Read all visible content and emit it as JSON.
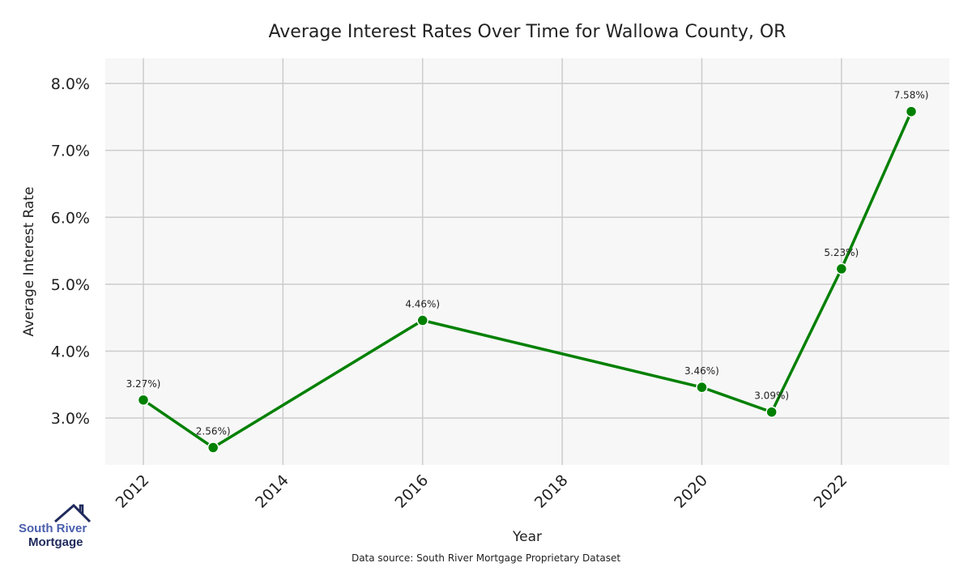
{
  "chart_data": {
    "type": "line",
    "title": "Average Interest Rates Over Time for Wallowa County, OR",
    "xlabel": "Year",
    "ylabel": "Average Interest Rate",
    "x": [
      2012,
      2013,
      2016,
      2020,
      2021,
      2022,
      2023
    ],
    "values": [
      3.27,
      2.56,
      4.46,
      3.46,
      3.09,
      5.23,
      7.58
    ],
    "data_labels": [
      "3.27%)",
      "2.56%)",
      "4.46%)",
      "3.46%)",
      "3.09%)",
      "5.23%)",
      "7.58%)"
    ],
    "xticks": [
      "2012",
      "2014",
      "2016",
      "2018",
      "2020",
      "2022"
    ],
    "xtick_values": [
      2012,
      2014,
      2016,
      2018,
      2020,
      2022
    ],
    "yticks": [
      "3.0%",
      "4.0%",
      "5.0%",
      "6.0%",
      "7.0%",
      "8.0%"
    ],
    "ytick_values": [
      3,
      4,
      5,
      6,
      7,
      8
    ],
    "xlim": [
      2011.455,
      2023.545
    ],
    "ylim": [
      2.3,
      8.375
    ],
    "grid": true,
    "line_color": "#008000",
    "plot_background": "#f7f7f7",
    "grid_color": "#cccccc"
  },
  "footer": {
    "source": "Data source: South River Mortgage Proprietary Dataset"
  },
  "logo": {
    "line1": "South River",
    "line2": "Mortgage"
  }
}
